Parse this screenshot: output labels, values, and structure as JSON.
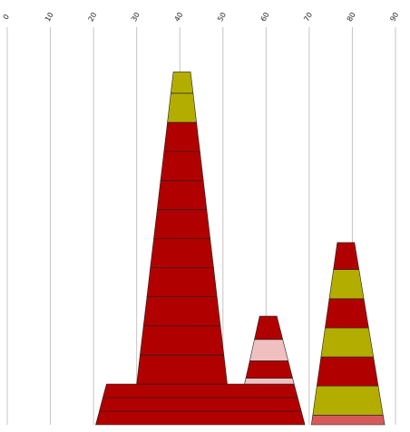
{
  "chart_data": {
    "type": "stacked-tapered-bar",
    "xlim": [
      0,
      90
    ],
    "ylim": [
      0,
      103
    ],
    "x_ticks": [
      "0",
      "10",
      "20",
      "30",
      "40",
      "50",
      "60",
      "70",
      "80",
      "90"
    ],
    "grid": true,
    "title": "",
    "xlabel": "",
    "ylabel": "",
    "colors": {
      "red": "#b00000",
      "olive": "#b3ad00",
      "pink": "#f0c0c0",
      "salmon": "#d65a5a",
      "grid": "#c4c4c4"
    },
    "shapes": [
      {
        "x_left": 20.5,
        "x_right": 69,
        "top_left": 23,
        "top_right": 66.5,
        "segments": [
          {
            "from": 0,
            "to": 3.5,
            "color": "red"
          },
          {
            "from": 3.5,
            "to": 7,
            "color": "red"
          },
          {
            "from": 7,
            "to": 10.5,
            "color": "red"
          }
        ]
      },
      {
        "x_left": 30,
        "x_right": 51,
        "top_left": 38.5,
        "top_right": 42.5,
        "segments": [
          {
            "from": 10.5,
            "to": 18,
            "color": "red"
          },
          {
            "from": 18,
            "to": 25.5,
            "color": "red"
          },
          {
            "from": 25.5,
            "to": 33,
            "color": "red"
          },
          {
            "from": 33,
            "to": 40.5,
            "color": "red"
          },
          {
            "from": 40.5,
            "to": 48,
            "color": "red"
          },
          {
            "from": 48,
            "to": 55.5,
            "color": "red"
          },
          {
            "from": 55.5,
            "to": 63,
            "color": "red"
          },
          {
            "from": 63,
            "to": 70.5,
            "color": "red"
          },
          {
            "from": 70.5,
            "to": 78,
            "color": "red"
          },
          {
            "from": 78,
            "to": 85.5,
            "color": "olive"
          },
          {
            "from": 85.5,
            "to": 91,
            "color": "olive"
          }
        ]
      },
      {
        "x_left": 55,
        "x_right": 66.5,
        "top_left": 58.5,
        "top_right": 62.5,
        "segments": [
          {
            "from": 10.5,
            "to": 12,
            "color": "pink"
          },
          {
            "from": 12,
            "to": 16.5,
            "color": "red"
          },
          {
            "from": 16.5,
            "to": 22,
            "color": "pink"
          },
          {
            "from": 22,
            "to": 28,
            "color": "red"
          }
        ]
      },
      {
        "x_left": 70.5,
        "x_right": 87.5,
        "top_left": 76.5,
        "top_right": 80.5,
        "segments": [
          {
            "from": 0,
            "to": 2.5,
            "color": "salmon"
          },
          {
            "from": 2.5,
            "to": 10,
            "color": "olive"
          },
          {
            "from": 10,
            "to": 17.5,
            "color": "red"
          },
          {
            "from": 17.5,
            "to": 25,
            "color": "olive"
          },
          {
            "from": 25,
            "to": 32.5,
            "color": "red"
          },
          {
            "from": 32.5,
            "to": 40,
            "color": "olive"
          },
          {
            "from": 40,
            "to": 47,
            "color": "red"
          }
        ]
      }
    ]
  }
}
